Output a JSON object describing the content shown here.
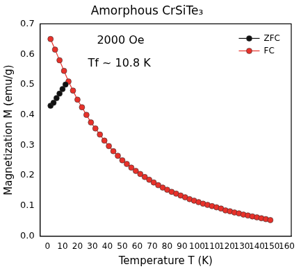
{
  "chart_data": {
    "type": "line",
    "title": "Amorphous CrSiTe₃",
    "x_label": "Temperature T (K)",
    "y_label": "Magnetization M (emu/g)",
    "annotations": [
      "2000 Oe",
      "Tf ~ 10.8 K"
    ],
    "xlim": [
      -5,
      163
    ],
    "xticks": [
      0,
      10,
      20,
      30,
      40,
      50,
      60,
      70,
      80,
      90,
      100,
      110,
      120,
      130,
      140,
      150,
      160
    ],
    "ylim": [
      0,
      0.7
    ],
    "yticks": [
      {
        "value": 0,
        "label": "0.0"
      },
      {
        "value": 0.1,
        "label": "0.1"
      },
      {
        "value": 0.2,
        "label": "0.2"
      },
      {
        "value": 0.3,
        "label": "0.3"
      },
      {
        "value": 0.4,
        "label": "0.4"
      },
      {
        "value": 0.5,
        "label": "0.5"
      },
      {
        "value": 0.6,
        "label": "0.6"
      },
      {
        "value": 0.7,
        "label": "0.7"
      }
    ],
    "grid": false,
    "legend": "upper right",
    "series": [
      {
        "name": "ZFC",
        "color": "#111111",
        "marker": "circle",
        "line_style": "solid",
        "x": [
          2,
          4,
          6,
          8,
          10,
          12
        ],
        "values": [
          0.43,
          0.44,
          0.455,
          0.47,
          0.485,
          0.5
        ]
      },
      {
        "name": "FC",
        "color": "#e8312a",
        "marker": "circle",
        "line_style": "solid",
        "x": [
          2,
          5,
          8,
          11,
          14,
          17,
          20,
          23,
          26,
          29,
          32,
          35,
          38,
          41,
          44,
          47,
          50,
          53,
          56,
          59,
          62,
          65,
          68,
          71,
          74,
          77,
          80,
          83,
          86,
          89,
          92,
          95,
          98,
          101,
          104,
          107,
          110,
          113,
          116,
          119,
          122,
          125,
          128,
          131,
          134,
          137,
          140,
          143,
          146,
          149
        ],
        "values": [
          0.65,
          0.615,
          0.58,
          0.545,
          0.51,
          0.48,
          0.45,
          0.425,
          0.4,
          0.375,
          0.355,
          0.335,
          0.315,
          0.297,
          0.28,
          0.265,
          0.25,
          0.238,
          0.226,
          0.215,
          0.205,
          0.195,
          0.186,
          0.177,
          0.168,
          0.16,
          0.153,
          0.146,
          0.14,
          0.134,
          0.128,
          0.122,
          0.117,
          0.112,
          0.107,
          0.103,
          0.099,
          0.095,
          0.091,
          0.085,
          0.082,
          0.078,
          0.075,
          0.071,
          0.068,
          0.065,
          0.062,
          0.059,
          0.056,
          0.053
        ]
      }
    ]
  }
}
